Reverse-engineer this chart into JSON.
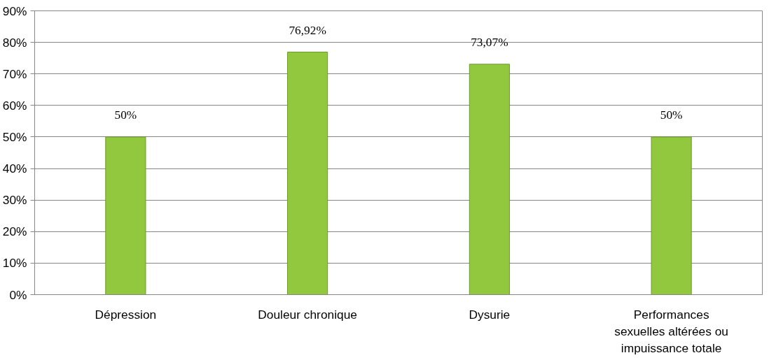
{
  "chart_data": {
    "type": "bar",
    "categories": [
      "Dépression",
      "Douleur chronique",
      "Dysurie",
      "Performances sexuelles altérées ou impuissance totale"
    ],
    "values": [
      50,
      76.92,
      73.07,
      50
    ],
    "value_labels": [
      "50%",
      "76,92%",
      "73,07%",
      "50%"
    ],
    "color": "#92c83e",
    "ylim": [
      0,
      90
    ],
    "yticks": [
      {
        "value": 0,
        "label": "0%"
      },
      {
        "value": 10,
        "label": "10%"
      },
      {
        "value": 20,
        "label": "20%"
      },
      {
        "value": 30,
        "label": "30%"
      },
      {
        "value": 40,
        "label": "40%"
      },
      {
        "value": 50,
        "label": "50%"
      },
      {
        "value": 60,
        "label": "60%"
      },
      {
        "value": 70,
        "label": "70%"
      },
      {
        "value": 80,
        "label": "80%"
      },
      {
        "value": 90,
        "label": "90%"
      }
    ],
    "grid": "y"
  }
}
